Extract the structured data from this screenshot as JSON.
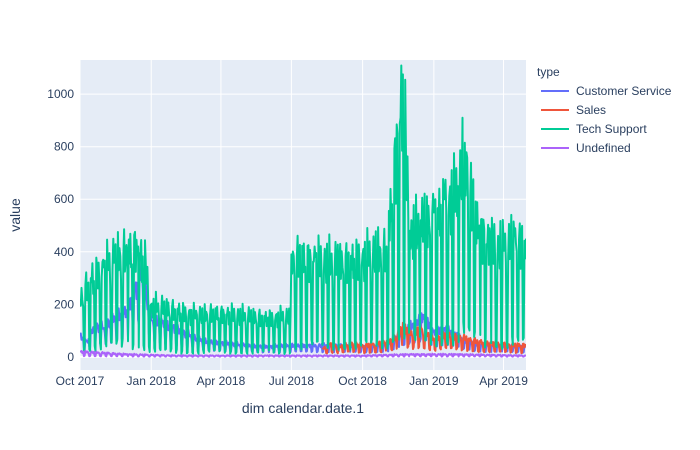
{
  "chart_data": {
    "type": "line",
    "xlabel": "dim calendar.date.1",
    "ylabel": "value",
    "x_range": [
      "2017-10-01",
      "2019-04-30"
    ],
    "ylim": [
      -50,
      1130
    ],
    "grid": true,
    "legend": {
      "title": "type",
      "placement": "right"
    },
    "x_ticks": [
      {
        "date": "2017-10-01",
        "label": "Oct 2017"
      },
      {
        "date": "2018-01-01",
        "label": "Jan 2018"
      },
      {
        "date": "2018-04-01",
        "label": "Apr 2018"
      },
      {
        "date": "2018-07-01",
        "label": "Jul 2018"
      },
      {
        "date": "2018-10-01",
        "label": "Oct 2018"
      },
      {
        "date": "2019-01-01",
        "label": "Jan 2019"
      },
      {
        "date": "2019-04-01",
        "label": "Apr 2019"
      }
    ],
    "y_ticks": [
      0,
      200,
      400,
      600,
      800,
      1000
    ],
    "series": [
      {
        "name": "Customer Service",
        "color": "#636efa",
        "points": [
          [
            "2017-10-01",
            80
          ],
          [
            "2017-10-10",
            60
          ],
          [
            "2017-10-20",
            120
          ],
          [
            "2017-11-01",
            110
          ],
          [
            "2017-11-15",
            150
          ],
          [
            "2017-12-01",
            180
          ],
          [
            "2017-12-10",
            250
          ],
          [
            "2017-12-20",
            330
          ],
          [
            "2018-01-01",
            140
          ],
          [
            "2018-01-15",
            130
          ],
          [
            "2018-02-01",
            110
          ],
          [
            "2018-02-15",
            90
          ],
          [
            "2018-03-01",
            70
          ],
          [
            "2018-03-15",
            60
          ],
          [
            "2018-04-01",
            55
          ],
          [
            "2018-05-01",
            45
          ],
          [
            "2018-06-01",
            40
          ],
          [
            "2018-07-01",
            45
          ],
          [
            "2018-08-01",
            45
          ],
          [
            "2018-09-01",
            45
          ],
          [
            "2018-10-01",
            40
          ],
          [
            "2018-11-01",
            50
          ],
          [
            "2018-11-25",
            100
          ],
          [
            "2018-12-10",
            140
          ],
          [
            "2018-12-20",
            160
          ],
          [
            "2019-01-01",
            100
          ],
          [
            "2019-01-15",
            110
          ],
          [
            "2019-02-01",
            80
          ],
          [
            "2019-02-15",
            60
          ],
          [
            "2019-03-01",
            50
          ],
          [
            "2019-04-01",
            45
          ],
          [
            "2019-04-30",
            40
          ]
        ]
      },
      {
        "name": "Sales",
        "color": "#ef553b",
        "points": [
          [
            "2018-08-10",
            30
          ],
          [
            "2018-08-20",
            50
          ],
          [
            "2018-09-01",
            40
          ],
          [
            "2018-09-15",
            55
          ],
          [
            "2018-10-01",
            45
          ],
          [
            "2018-10-15",
            50
          ],
          [
            "2018-11-01",
            60
          ],
          [
            "2018-11-15",
            80
          ],
          [
            "2018-11-22",
            130
          ],
          [
            "2018-12-01",
            90
          ],
          [
            "2018-12-15",
            110
          ],
          [
            "2019-01-01",
            70
          ],
          [
            "2019-01-15",
            90
          ],
          [
            "2019-02-01",
            80
          ],
          [
            "2019-02-15",
            70
          ],
          [
            "2019-03-01",
            60
          ],
          [
            "2019-03-15",
            55
          ],
          [
            "2019-04-01",
            50
          ],
          [
            "2019-04-30",
            45
          ]
        ]
      },
      {
        "name": "Tech Support",
        "color": "#00cc96",
        "points": [
          [
            "2017-10-01",
            220
          ],
          [
            "2017-10-15",
            300
          ],
          [
            "2017-11-01",
            340
          ],
          [
            "2017-11-15",
            380
          ],
          [
            "2017-12-01",
            400
          ],
          [
            "2017-12-15",
            420
          ],
          [
            "2017-12-25",
            350
          ],
          [
            "2018-01-01",
            200
          ],
          [
            "2018-02-01",
            180
          ],
          [
            "2018-03-01",
            160
          ],
          [
            "2018-04-01",
            170
          ],
          [
            "2018-05-01",
            160
          ],
          [
            "2018-06-01",
            150
          ],
          [
            "2018-06-30",
            160
          ],
          [
            "2018-07-01",
            390
          ],
          [
            "2018-08-01",
            380
          ],
          [
            "2018-09-01",
            370
          ],
          [
            "2018-10-01",
            390
          ],
          [
            "2018-11-01",
            420
          ],
          [
            "2018-11-22",
            1075
          ],
          [
            "2018-12-01",
            480
          ],
          [
            "2018-12-15",
            520
          ],
          [
            "2019-01-01",
            550
          ],
          [
            "2019-01-15",
            600
          ],
          [
            "2019-02-01",
            650
          ],
          [
            "2019-02-10",
            815
          ],
          [
            "2019-02-20",
            600
          ],
          [
            "2019-03-01",
            500
          ],
          [
            "2019-03-15",
            450
          ],
          [
            "2019-04-01",
            430
          ],
          [
            "2019-04-15",
            460
          ],
          [
            "2019-04-30",
            450
          ]
        ]
      },
      {
        "name": "Undefined",
        "color": "#ab63fa",
        "points": [
          [
            "2017-10-01",
            20
          ],
          [
            "2017-12-01",
            10
          ],
          [
            "2018-02-01",
            5
          ],
          [
            "2018-04-01",
            5
          ],
          [
            "2018-06-01",
            5
          ],
          [
            "2018-08-01",
            5
          ],
          [
            "2018-10-01",
            5
          ],
          [
            "2018-12-01",
            10
          ],
          [
            "2019-02-01",
            10
          ],
          [
            "2019-04-30",
            5
          ]
        ]
      }
    ]
  }
}
